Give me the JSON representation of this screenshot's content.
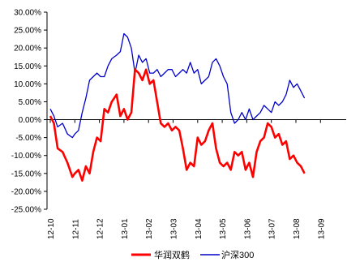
{
  "chart_data": {
    "type": "line",
    "title": "",
    "xlabel": "",
    "ylabel": "",
    "ylim": [
      -25,
      30
    ],
    "y_ticks": [
      {
        "value": 30,
        "label": "30.00%"
      },
      {
        "value": 25,
        "label": "25.00%"
      },
      {
        "value": 20,
        "label": "20.00%"
      },
      {
        "value": 15,
        "label": "15.00%"
      },
      {
        "value": 10,
        "label": "10.00%"
      },
      {
        "value": 5,
        "label": "5.00%"
      },
      {
        "value": 0,
        "label": "0.00%"
      },
      {
        "value": -5,
        "label": "-5.00%"
      },
      {
        "value": -10,
        "label": "-10.00%"
      },
      {
        "value": -15,
        "label": "-15.00%"
      },
      {
        "value": -20,
        "label": "-20.00%"
      },
      {
        "value": -25,
        "label": "-25.00%"
      }
    ],
    "xlim": [
      0,
      10.35
    ],
    "x_ticks": [
      {
        "value": 0,
        "label": "12-10"
      },
      {
        "value": 1,
        "label": "12-11"
      },
      {
        "value": 2,
        "label": "12-12"
      },
      {
        "value": 3,
        "label": "13-01"
      },
      {
        "value": 4,
        "label": "13-02"
      },
      {
        "value": 5,
        "label": "13-03"
      },
      {
        "value": 6,
        "label": "13-04"
      },
      {
        "value": 7,
        "label": "13-05"
      },
      {
        "value": 8,
        "label": "13-06"
      },
      {
        "value": 9,
        "label": "13-07"
      },
      {
        "value": 10,
        "label": "13-08"
      },
      {
        "value": 11,
        "label": "13-09"
      }
    ],
    "x_unit": "months from 12-10",
    "legend_position": "bottom",
    "series": [
      {
        "name": "华润双鹤",
        "color": "#ff0000",
        "x": [
          0,
          0.15,
          0.3,
          0.5,
          0.7,
          0.9,
          1.0,
          1.15,
          1.3,
          1.45,
          1.6,
          1.75,
          1.9,
          2.05,
          2.2,
          2.35,
          2.5,
          2.7,
          2.85,
          3.0,
          3.15,
          3.3,
          3.45,
          3.6,
          3.75,
          3.9,
          4.05,
          4.2,
          4.35,
          4.5,
          4.65,
          4.8,
          4.95,
          5.1,
          5.25,
          5.4,
          5.55,
          5.7,
          5.85,
          6.0,
          6.15,
          6.3,
          6.45,
          6.6,
          6.75,
          6.9,
          7.05,
          7.2,
          7.35,
          7.5,
          7.65,
          7.8,
          7.95,
          8.1,
          8.25,
          8.4,
          8.55,
          8.7,
          8.85,
          9.0,
          9.15,
          9.3,
          9.45,
          9.6,
          9.75,
          9.9,
          10.05,
          10.2,
          10.35
        ],
        "values": [
          1,
          -1,
          -8,
          -9,
          -12,
          -16,
          -15,
          -14,
          -17,
          -13,
          -15,
          -9,
          -5,
          -6,
          3,
          2,
          5,
          7,
          1,
          3,
          0,
          2,
          14,
          13,
          11,
          14,
          10,
          11,
          5,
          -1,
          -2,
          -1,
          -3,
          -2,
          -3,
          -8,
          -14,
          -12,
          -13,
          -5,
          -7,
          -6,
          -3,
          -1,
          -8,
          -12,
          -13,
          -12,
          -14,
          -9,
          -10,
          -9,
          -14,
          -12,
          -16,
          -9,
          -6,
          -5,
          -1,
          -2,
          -5,
          -4,
          -7,
          -6,
          -11,
          -10,
          -12,
          -13,
          -15
        ]
      },
      {
        "name": "沪深300",
        "color": "#0000cc",
        "x": [
          0,
          0.15,
          0.3,
          0.5,
          0.7,
          0.9,
          1.0,
          1.15,
          1.3,
          1.45,
          1.6,
          1.75,
          1.9,
          2.05,
          2.2,
          2.35,
          2.5,
          2.7,
          2.85,
          3.0,
          3.15,
          3.3,
          3.45,
          3.6,
          3.75,
          3.9,
          4.05,
          4.2,
          4.35,
          4.5,
          4.65,
          4.8,
          4.95,
          5.1,
          5.25,
          5.4,
          5.55,
          5.7,
          5.85,
          6.0,
          6.15,
          6.3,
          6.45,
          6.6,
          6.75,
          6.9,
          7.05,
          7.2,
          7.35,
          7.5,
          7.65,
          7.8,
          7.95,
          8.1,
          8.25,
          8.4,
          8.55,
          8.7,
          8.85,
          9.0,
          9.15,
          9.3,
          9.45,
          9.6,
          9.75,
          9.9,
          10.05,
          10.2,
          10.35
        ],
        "values": [
          3,
          1,
          -2,
          -1,
          -4,
          -5,
          -4,
          -3,
          2,
          6,
          11,
          12,
          13,
          12,
          12,
          15,
          17,
          18,
          19,
          24,
          23,
          20,
          13,
          18,
          16,
          17,
          13,
          13,
          14,
          12,
          13,
          14,
          14,
          12,
          13,
          14,
          13,
          16,
          13,
          14,
          10,
          11,
          12,
          16,
          17,
          15,
          12,
          10,
          2,
          -1,
          0,
          2,
          0,
          3,
          0,
          1,
          2,
          4,
          3,
          2,
          5,
          4,
          5,
          7,
          11,
          9,
          10,
          8,
          6
        ]
      }
    ]
  }
}
